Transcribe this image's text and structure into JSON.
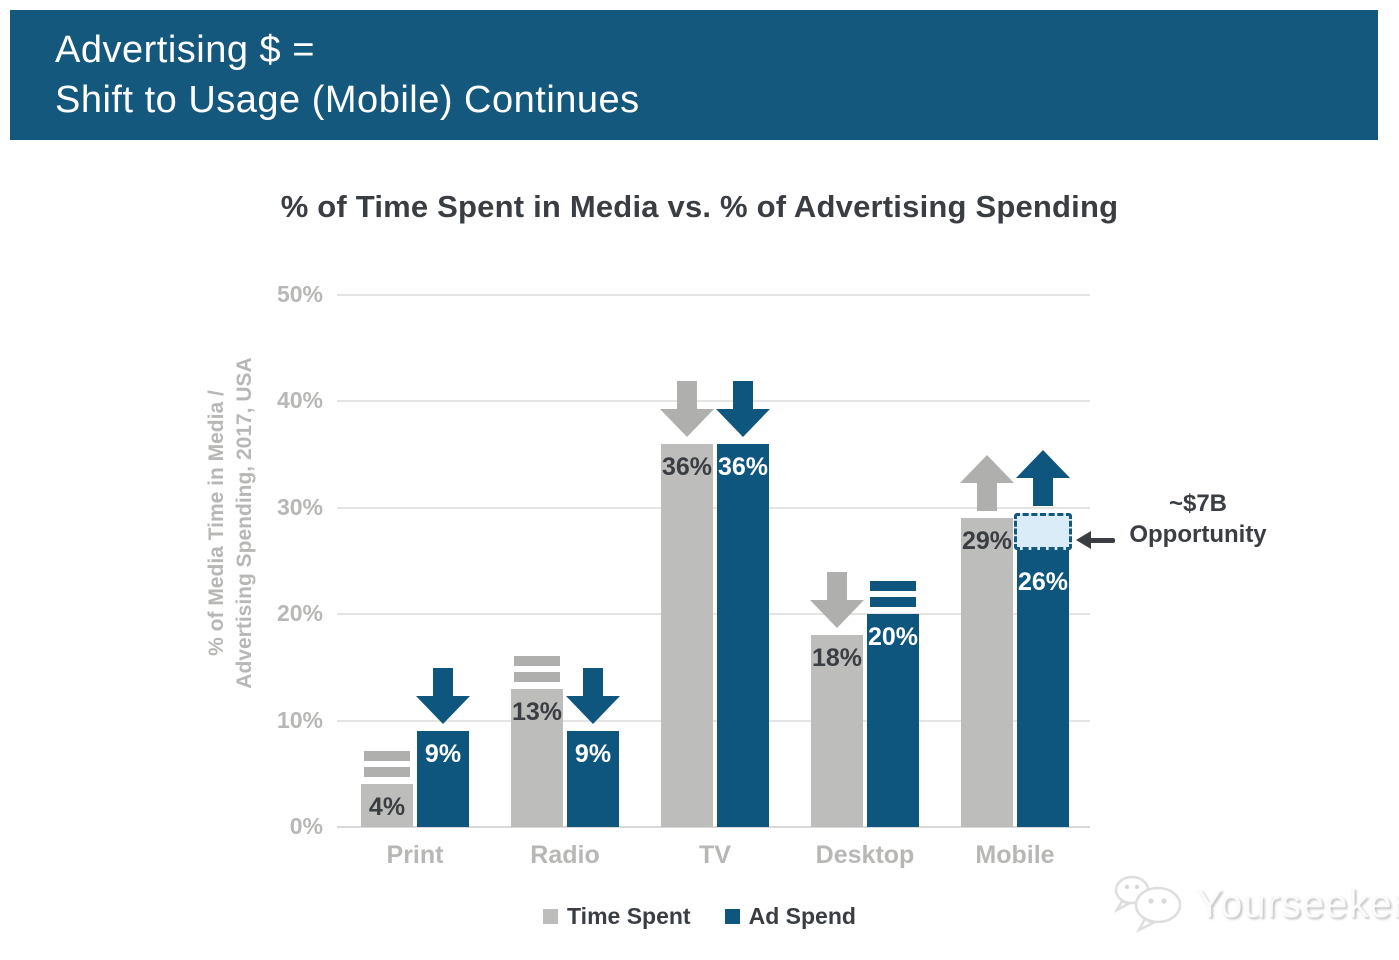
{
  "header": {
    "line1": "Advertising $ =",
    "line2": "Shift to Usage (Mobile) Continues"
  },
  "chart_data": {
    "type": "bar",
    "title": "% of Time Spent in Media vs. % of Advertising Spending",
    "ylabel": [
      "% of Media Time in Media /",
      "Advertising Spending, 2017, USA"
    ],
    "ylim": [
      0,
      50
    ],
    "ytick_step": 10,
    "ytick_suffix": "%",
    "grid": true,
    "legend_position": "bottom",
    "categories": [
      "Print",
      "Radio",
      "TV",
      "Desktop",
      "Mobile"
    ],
    "series": [
      {
        "name": "Time Spent",
        "color": "#BDBDBB",
        "trend_color": "#AFAFAD",
        "label_color": "#3A3E42",
        "values": [
          4,
          13,
          36,
          18,
          29
        ],
        "labels": [
          "4%",
          "13%",
          "36%",
          "18%",
          "29%"
        ],
        "trend": [
          "equals",
          "equals",
          "down",
          "down",
          "up"
        ]
      },
      {
        "name": "Ad Spend",
        "color": "#0E567E",
        "trend_color": "#0E567E",
        "label_color": "#FFFFFF",
        "values": [
          9,
          9,
          36,
          20,
          26
        ],
        "labels": [
          "9%",
          "9%",
          "36%",
          "20%",
          "26%"
        ],
        "trend": [
          "down",
          "down",
          "down",
          "equals",
          "up"
        ]
      }
    ],
    "annotation": {
      "value": "~$7B",
      "label": "Opportunity",
      "target_category": "Mobile",
      "target_series": "Ad Spend",
      "box_from_percent": 26,
      "box_to_percent": 29.5,
      "box_fill": "#D9ECF8",
      "box_border": "#15587E"
    }
  },
  "colors": {
    "banner_bg": "#15587E",
    "banner_text": "#FFFFFF",
    "grid": "#E4E4E2",
    "axis_text": "#B7B7B5",
    "dark_text": "#3A3E42"
  },
  "watermark": {
    "text": "Yourseeker"
  }
}
